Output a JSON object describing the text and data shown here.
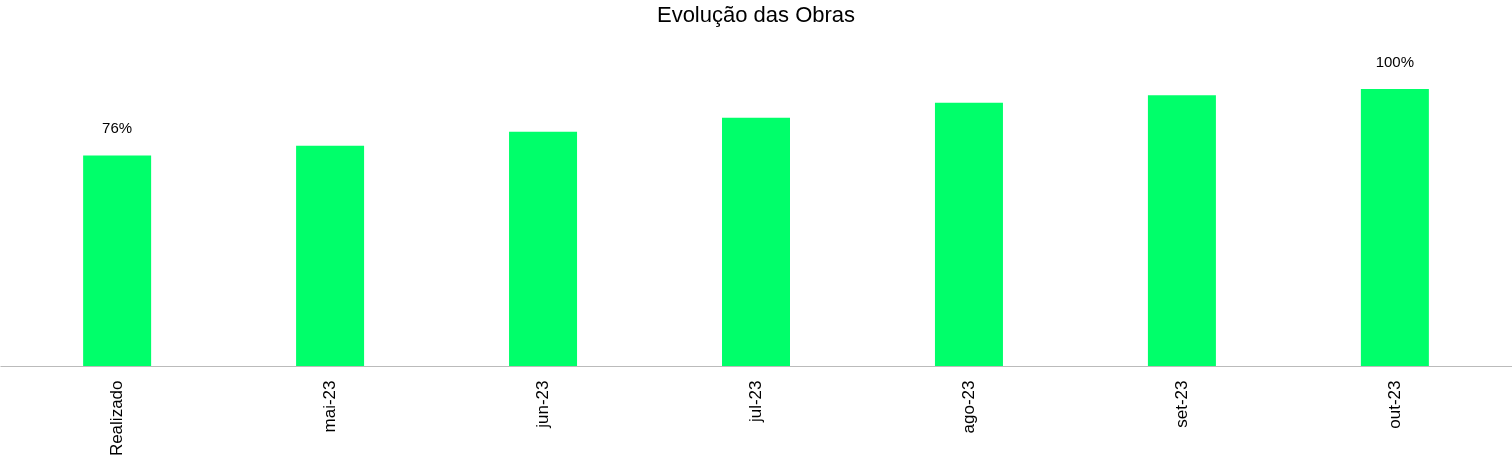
{
  "chart_data": {
    "type": "bar",
    "title": "Evolução das Obras",
    "categories": [
      "Realizado",
      "mai-23",
      "jun-23",
      "jul-23",
      "ago-23",
      "set-23",
      "out-23"
    ],
    "values": [
      76,
      79.5,
      84.6,
      89.6,
      95,
      97.7,
      100
    ],
    "value_labels": [
      "76%",
      null,
      null,
      null,
      null,
      null,
      "100%"
    ],
    "color": "#00ff6a"
  }
}
